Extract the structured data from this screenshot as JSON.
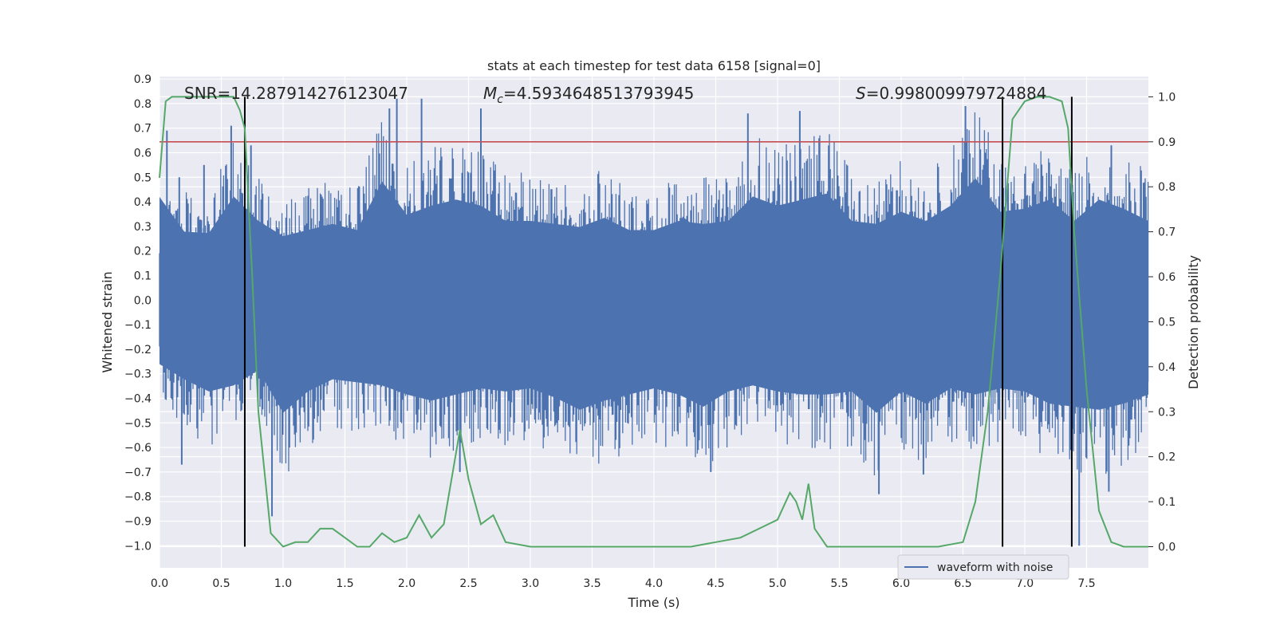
{
  "chart_data": {
    "type": "line",
    "title": "stats at each timestep for test data 6158 [signal=0]",
    "xlabel": "Time (s)",
    "ylabel": "Whitened strain",
    "y2label": "Detection probability",
    "xlim": [
      0,
      8.0
    ],
    "ylim": [
      -1.09,
      0.91
    ],
    "y2lim": [
      -0.047,
      1.045
    ],
    "x_ticks": [
      0.0,
      0.5,
      1.0,
      1.5,
      2.0,
      2.5,
      3.0,
      3.5,
      4.0,
      4.5,
      5.0,
      5.5,
      6.0,
      6.5,
      7.0,
      7.5
    ],
    "x_tick_labels": [
      "0.0",
      "0.5",
      "1.0",
      "1.5",
      "2.0",
      "2.5",
      "3.0",
      "3.5",
      "4.0",
      "4.5",
      "5.0",
      "5.5",
      "6.0",
      "6.5",
      "7.0",
      "7.5"
    ],
    "y_ticks": [
      0.9,
      0.8,
      0.7,
      0.6,
      0.5,
      0.4,
      0.3,
      0.2,
      0.1,
      0.0,
      -0.1,
      -0.2,
      -0.3,
      -0.4,
      -0.5,
      -0.6,
      -0.7,
      -0.8,
      -0.9,
      -1.0
    ],
    "y_tick_labels": [
      "0.9",
      "0.8",
      "0.7",
      "0.6",
      "0.5",
      "0.4",
      "0.3",
      "0.2",
      "0.1",
      "0.0",
      "−0.1",
      "−0.2",
      "−0.3",
      "−0.4",
      "−0.5",
      "−0.6",
      "−0.7",
      "−0.8",
      "−0.9",
      "−1.0"
    ],
    "y2_ticks": [
      1.0,
      0.9,
      0.8,
      0.7,
      0.6,
      0.5,
      0.4,
      0.3,
      0.2,
      0.1,
      0.0
    ],
    "y2_tick_labels": [
      "1.0",
      "0.9",
      "0.8",
      "0.7",
      "0.6",
      "0.5",
      "0.4",
      "0.3",
      "0.2",
      "0.1",
      "0.0"
    ],
    "grid": true,
    "annotations": {
      "snr": "SNR=14.287914276123047",
      "mc_symbol": "M",
      "mc_sub": "c",
      "mc_value": "=4.5934648513793945",
      "s_symbol": "S",
      "s_value": "=0.998009979724884"
    },
    "threshold": {
      "value": 0.9,
      "axis": "y2",
      "color": "#c44e52"
    },
    "vertical_lines": [
      0.69,
      6.82,
      7.38
    ],
    "legend": {
      "position": "bottom-right",
      "entries": [
        "waveform with noise"
      ]
    },
    "series": [
      {
        "name": "waveform with noise",
        "color": "#4c72b0",
        "axis": "y",
        "style": "noise-envelope",
        "envelope": {
          "x": [
            0.0,
            0.2,
            0.4,
            0.6,
            0.8,
            1.0,
            1.2,
            1.4,
            1.6,
            1.8,
            2.0,
            2.2,
            2.4,
            2.6,
            2.8,
            3.0,
            3.2,
            3.4,
            3.6,
            3.8,
            4.0,
            4.2,
            4.4,
            4.6,
            4.8,
            5.0,
            5.2,
            5.4,
            5.6,
            5.8,
            6.0,
            6.2,
            6.4,
            6.6,
            6.8,
            7.0,
            7.2,
            7.4,
            7.6,
            7.8,
            8.0
          ],
          "upper": [
            0.42,
            0.45,
            0.44,
            0.68,
            0.52,
            0.42,
            0.46,
            0.5,
            0.46,
            0.78,
            0.56,
            0.62,
            0.66,
            0.62,
            0.52,
            0.52,
            0.5,
            0.48,
            0.54,
            0.46,
            0.46,
            0.52,
            0.5,
            0.52,
            0.68,
            0.62,
            0.66,
            0.7,
            0.52,
            0.5,
            0.58,
            0.52,
            0.62,
            0.8,
            0.58,
            0.6,
            0.66,
            0.52,
            0.66,
            0.6,
            0.52
          ],
          "lower": [
            -0.42,
            -0.52,
            -0.6,
            -0.56,
            -0.46,
            -0.74,
            -0.6,
            -0.52,
            -0.54,
            -0.56,
            -0.62,
            -0.66,
            -0.62,
            -0.58,
            -0.6,
            -0.58,
            -0.64,
            -0.72,
            -0.66,
            -0.62,
            -0.58,
            -0.62,
            -0.7,
            -0.6,
            -0.56,
            -0.6,
            -0.62,
            -0.62,
            -0.6,
            -0.74,
            -0.6,
            -0.68,
            -0.58,
            -0.62,
            -0.58,
            -0.6,
            -0.68,
            -0.7,
            -0.72,
            -0.68,
            -0.62
          ]
        },
        "spikes": [
          {
            "x": 0.06,
            "y": 0.69
          },
          {
            "x": 0.16,
            "y": 0.5
          },
          {
            "x": 0.36,
            "y": 0.55
          },
          {
            "x": 0.58,
            "y": 0.71
          },
          {
            "x": 0.74,
            "y": 0.63
          },
          {
            "x": 1.86,
            "y": 0.78
          },
          {
            "x": 1.92,
            "y": 0.82
          },
          {
            "x": 2.12,
            "y": 0.82
          },
          {
            "x": 2.6,
            "y": 0.78
          },
          {
            "x": 4.76,
            "y": 0.76
          },
          {
            "x": 5.18,
            "y": 0.77
          },
          {
            "x": 6.52,
            "y": 0.79
          },
          {
            "x": 7.7,
            "y": 0.63
          },
          {
            "x": 0.91,
            "y": -0.88
          },
          {
            "x": 0.18,
            "y": -0.67
          },
          {
            "x": 2.43,
            "y": -0.7
          },
          {
            "x": 4.46,
            "y": -0.7
          },
          {
            "x": 5.82,
            "y": -0.79
          },
          {
            "x": 6.18,
            "y": -0.71
          },
          {
            "x": 7.68,
            "y": -0.78
          },
          {
            "x": 7.44,
            "y": -1.0
          }
        ]
      },
      {
        "name": "",
        "color": "#55a868",
        "axis": "y2",
        "x": [
          0.0,
          0.05,
          0.1,
          0.2,
          0.3,
          0.4,
          0.5,
          0.6,
          0.65,
          0.69,
          0.75,
          0.8,
          0.9,
          1.0,
          1.1,
          1.2,
          1.3,
          1.4,
          1.5,
          1.6,
          1.7,
          1.8,
          1.9,
          2.0,
          2.1,
          2.2,
          2.3,
          2.4,
          2.43,
          2.5,
          2.6,
          2.7,
          2.8,
          3.0,
          3.2,
          3.5,
          3.8,
          4.0,
          4.3,
          4.5,
          4.7,
          4.85,
          5.0,
          5.1,
          5.15,
          5.2,
          5.25,
          5.3,
          5.4,
          5.6,
          6.0,
          6.3,
          6.5,
          6.6,
          6.7,
          6.8,
          6.9,
          7.0,
          7.1,
          7.2,
          7.3,
          7.35,
          7.4,
          7.5,
          7.6,
          7.7,
          7.8,
          8.0
        ],
        "values": [
          0.82,
          0.99,
          1.0,
          1.0,
          1.0,
          1.0,
          1.0,
          1.0,
          0.97,
          0.93,
          0.6,
          0.3,
          0.03,
          0.0,
          0.01,
          0.01,
          0.04,
          0.04,
          0.02,
          0.0,
          0.0,
          0.03,
          0.01,
          0.02,
          0.07,
          0.02,
          0.05,
          0.21,
          0.26,
          0.15,
          0.05,
          0.07,
          0.01,
          0.0,
          0.0,
          0.0,
          0.0,
          0.0,
          0.0,
          0.01,
          0.02,
          0.04,
          0.06,
          0.12,
          0.1,
          0.06,
          0.14,
          0.04,
          0.0,
          0.0,
          0.0,
          0.0,
          0.01,
          0.1,
          0.3,
          0.6,
          0.95,
          0.99,
          1.0,
          1.0,
          0.99,
          0.93,
          0.7,
          0.35,
          0.08,
          0.01,
          0.0,
          0.0
        ]
      }
    ]
  }
}
